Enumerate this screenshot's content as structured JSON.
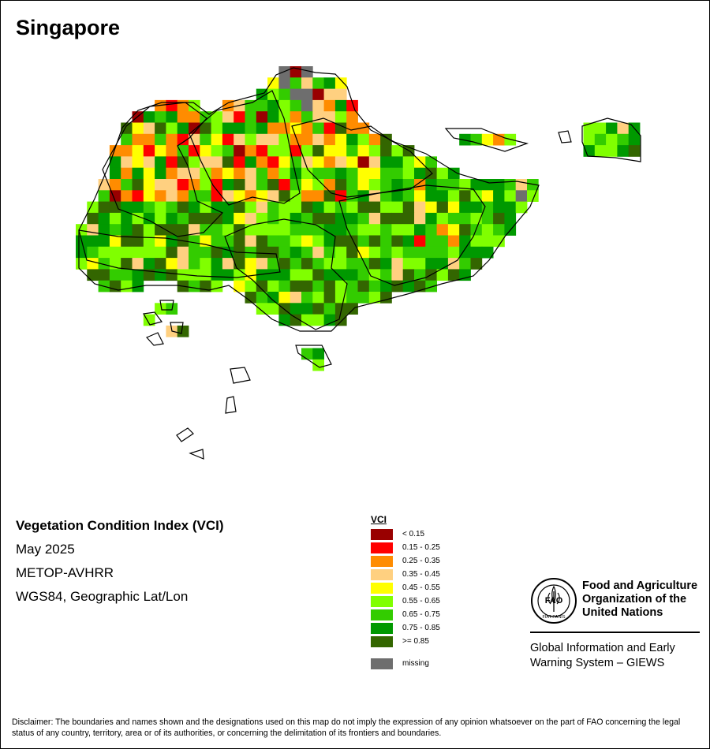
{
  "header": {
    "title": "Singapore"
  },
  "info": {
    "product": "Vegetation Condition Index (VCI)",
    "period": "May 2025",
    "sensor": "METOP-AVHRR",
    "projection": "WGS84, Geographic Lat/Lon"
  },
  "legend": {
    "title": "VCI",
    "classes": [
      {
        "label": "< 0.15",
        "color": "#990000"
      },
      {
        "label": "0.15 - 0.25",
        "color": "#ff0000"
      },
      {
        "label": "0.25 - 0.35",
        "color": "#ff8c00"
      },
      {
        "label": "0.35 - 0.45",
        "color": "#ffd080"
      },
      {
        "label": "0.45 - 0.55",
        "color": "#ffff00"
      },
      {
        "label": "0.55 - 0.65",
        "color": "#80ff00"
      },
      {
        "label": "0.65 - 0.75",
        "color": "#33cc00"
      },
      {
        "label": "0.75 - 0.85",
        "color": "#009900"
      },
      {
        "label": ">= 0.85",
        "color": "#336600"
      }
    ],
    "missing": {
      "label": "missing",
      "color": "#6e6e6e"
    }
  },
  "branding": {
    "org_line1": "Food and Agriculture",
    "org_line2": "Organization of the",
    "org_line3": "United Nations",
    "giews_line1": "Global Information and Early",
    "giews_line2": "Warning System – GIEWS",
    "logo_text": "FAO",
    "logo_motto": "FIAT PANIS"
  },
  "disclaimer": "Disclaimer: The boundaries and names shown and the designations used on this map do not imply the expression of any opinion whatsoever on the part of FAO concerning the legal status of any country, territory, area or of its authorities, or concerning the delimitation of its frontiers and boundaries."
}
